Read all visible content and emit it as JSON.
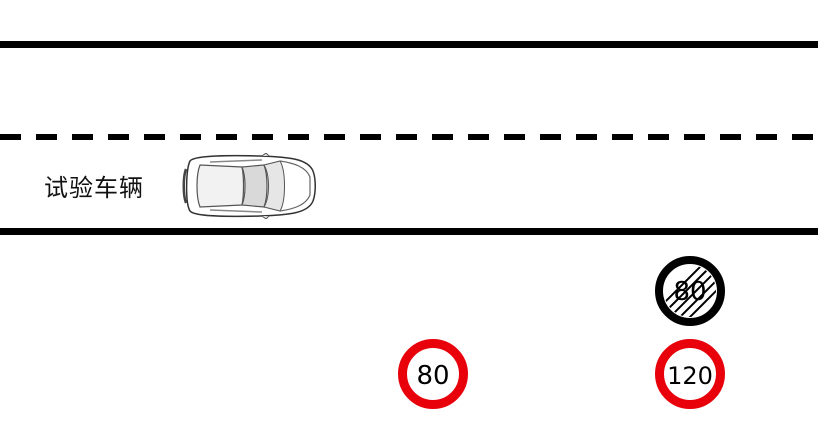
{
  "vehicle": {
    "label": "试验车辆"
  },
  "signs": {
    "speed_limit_80": {
      "value": "80"
    },
    "speed_limit_120": {
      "value": "120"
    },
    "end_limit_80": {
      "value": "80"
    }
  },
  "colors": {
    "road_line": "#000000",
    "sign_border": "#e8000b",
    "sign_fill": "#ffffff",
    "end_sign": "#000000"
  }
}
